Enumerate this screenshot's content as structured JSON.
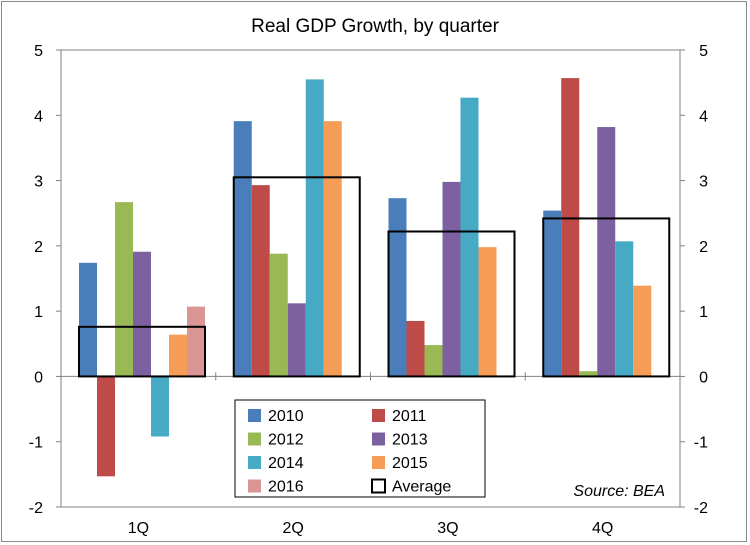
{
  "chart_data": {
    "type": "bar",
    "title": "Real GDP Growth, by quarter",
    "xlabel": "",
    "ylabel": "",
    "categories": [
      "1Q",
      "2Q",
      "3Q",
      "4Q"
    ],
    "ylim": [
      -2,
      5
    ],
    "yticks": [
      "-2",
      "-1",
      "0",
      "1",
      "2",
      "3",
      "4",
      "5"
    ],
    "secondary_yaxis": true,
    "grid": false,
    "legend_position": "bottom-center",
    "series": [
      {
        "name": "2010",
        "color": "#4a7ebb",
        "values": [
          1.74,
          3.91,
          2.73,
          2.54
        ]
      },
      {
        "name": "2011",
        "color": "#be4b48",
        "values": [
          -1.53,
          2.93,
          0.85,
          4.57
        ]
      },
      {
        "name": "2012",
        "color": "#98b954",
        "values": [
          2.67,
          1.88,
          0.48,
          0.08
        ]
      },
      {
        "name": "2013",
        "color": "#7d60a0",
        "values": [
          1.91,
          1.12,
          2.98,
          3.82
        ]
      },
      {
        "name": "2014",
        "color": "#46aac5",
        "values": [
          -0.92,
          4.55,
          4.27,
          2.07
        ]
      },
      {
        "name": "2015",
        "color": "#f59d56",
        "values": [
          0.64,
          3.91,
          1.98,
          1.39
        ]
      },
      {
        "name": "2016",
        "color": "#d99694",
        "values": [
          1.07,
          null,
          null,
          null
        ]
      }
    ],
    "average": {
      "name": "Average",
      "values": [
        0.76,
        3.05,
        2.22,
        2.42
      ]
    },
    "annotation": "Source: BEA"
  }
}
